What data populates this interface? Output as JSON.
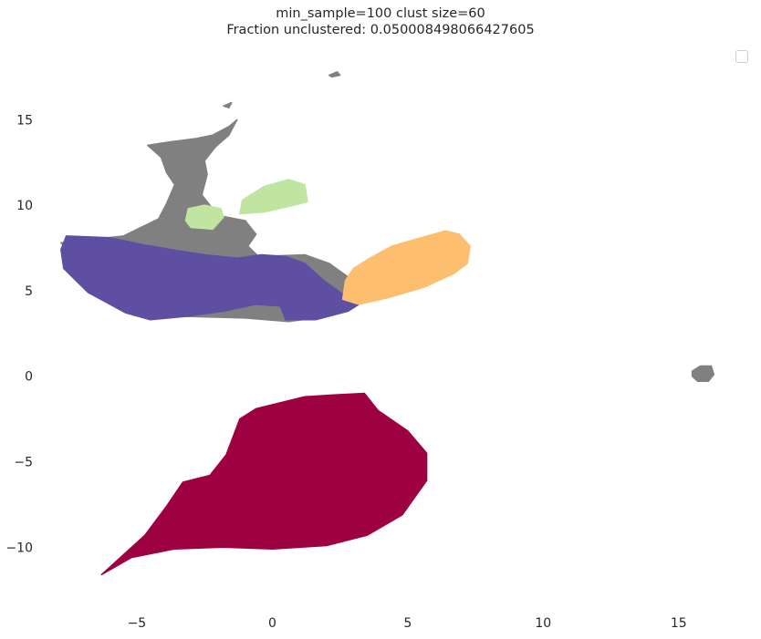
{
  "chart_data": {
    "type": "scatter",
    "title": "min_sample=100 clust size=60",
    "subtitle": "Fraction unclustered: 0.050008498066427605",
    "xlabel": "",
    "ylabel": "",
    "xlim": [
      -8.5,
      17.5
    ],
    "ylim": [
      -13.5,
      18.8
    ],
    "xticks": [
      -5,
      0,
      5,
      10,
      15
    ],
    "yticks": [
      -10,
      -5,
      0,
      5,
      10,
      15
    ],
    "xtick_labels": [
      "−5",
      "0",
      "5",
      "10",
      "15"
    ],
    "ytick_labels": [
      "−10",
      "−5",
      "0",
      "5",
      "10",
      "15"
    ],
    "grid": false,
    "legend": {
      "placement": "top-right",
      "entries": []
    },
    "colors": {
      "unclustered": "#808080",
      "cluster_red": "#9e0142",
      "cluster_purple": "#5e4fa2",
      "cluster_orange": "#fdbf6f",
      "cluster_green": "#bfe5a0"
    },
    "series": [
      {
        "color_key": "unclustered",
        "polygons": [
          [
            [
              -4.6,
              13.5
            ],
            [
              -3.8,
              13.7
            ],
            [
              -2.8,
              13.9
            ],
            [
              -2.2,
              14.1
            ],
            [
              -1.6,
              14.6
            ],
            [
              -1.3,
              15.0
            ],
            [
              -1.6,
              14.1
            ],
            [
              -2.1,
              13.4
            ],
            [
              -2.5,
              12.6
            ],
            [
              -2.4,
              11.8
            ],
            [
              -2.6,
              10.6
            ],
            [
              -2.0,
              9.4
            ],
            [
              -1.0,
              9.1
            ],
            [
              -0.6,
              8.3
            ],
            [
              -0.9,
              7.6
            ],
            [
              -0.5,
              7.0
            ],
            [
              1.2,
              7.1
            ],
            [
              2.1,
              6.6
            ],
            [
              2.8,
              5.8
            ],
            [
              3.0,
              5.0
            ],
            [
              2.6,
              4.0
            ],
            [
              1.6,
              3.4
            ],
            [
              0.6,
              3.2
            ],
            [
              -1.0,
              3.4
            ],
            [
              -3.2,
              3.5
            ],
            [
              -5.4,
              3.9
            ],
            [
              -7.8,
              7.8
            ],
            [
              -5.5,
              8.2
            ],
            [
              -4.2,
              9.2
            ],
            [
              -3.9,
              10.1
            ],
            [
              -3.6,
              11.2
            ],
            [
              -3.9,
              11.9
            ],
            [
              -4.1,
              12.8
            ]
          ],
          [
            [
              15.5,
              0.3
            ],
            [
              15.8,
              0.6
            ],
            [
              16.2,
              0.6
            ],
            [
              16.3,
              0.1
            ],
            [
              16.1,
              -0.3
            ],
            [
              15.7,
              -0.3
            ],
            [
              15.5,
              0.0
            ]
          ],
          [
            [
              2.1,
              17.6
            ],
            [
              2.4,
              17.8
            ],
            [
              2.5,
              17.6
            ],
            [
              2.2,
              17.5
            ]
          ],
          [
            [
              -1.8,
              15.8
            ],
            [
              -1.5,
              16.0
            ],
            [
              -1.6,
              15.7
            ]
          ]
        ]
      },
      {
        "color_key": "cluster_purple",
        "polygons": [
          [
            [
              -7.6,
              8.2
            ],
            [
              -6.0,
              8.1
            ],
            [
              -4.8,
              7.7
            ],
            [
              -3.7,
              7.4
            ],
            [
              -2.5,
              7.1
            ],
            [
              -1.3,
              6.9
            ],
            [
              -0.4,
              7.1
            ],
            [
              0.5,
              7.0
            ],
            [
              1.2,
              6.6
            ],
            [
              1.9,
              5.6
            ],
            [
              2.6,
              4.8
            ],
            [
              3.6,
              4.6
            ],
            [
              2.8,
              3.8
            ],
            [
              1.6,
              3.3
            ],
            [
              0.5,
              3.3
            ],
            [
              0.3,
              4.1
            ],
            [
              -0.6,
              4.2
            ],
            [
              -1.8,
              3.8
            ],
            [
              -3.2,
              3.5
            ],
            [
              -4.5,
              3.3
            ],
            [
              -5.4,
              3.7
            ],
            [
              -6.8,
              4.9
            ],
            [
              -7.7,
              6.3
            ],
            [
              -7.8,
              7.4
            ]
          ]
        ]
      },
      {
        "color_key": "cluster_orange",
        "polygons": [
          [
            [
              2.6,
              4.5
            ],
            [
              2.7,
              5.6
            ],
            [
              3.0,
              6.3
            ],
            [
              3.6,
              6.9
            ],
            [
              4.4,
              7.6
            ],
            [
              5.5,
              8.1
            ],
            [
              6.4,
              8.5
            ],
            [
              6.9,
              8.3
            ],
            [
              7.3,
              7.6
            ],
            [
              7.2,
              6.6
            ],
            [
              6.7,
              6.0
            ],
            [
              5.6,
              5.2
            ],
            [
              4.3,
              4.6
            ],
            [
              3.2,
              4.2
            ]
          ]
        ]
      },
      {
        "color_key": "cluster_green",
        "polygons": [
          [
            [
              -1.2,
              9.5
            ],
            [
              -1.1,
              10.3
            ],
            [
              -0.3,
              11.1
            ],
            [
              0.6,
              11.5
            ],
            [
              1.2,
              11.2
            ],
            [
              1.3,
              10.2
            ],
            [
              0.8,
              10.0
            ],
            [
              -0.3,
              9.6
            ]
          ],
          [
            [
              -3.2,
              9.1
            ],
            [
              -3.1,
              9.8
            ],
            [
              -2.5,
              10.0
            ],
            [
              -1.9,
              9.8
            ],
            [
              -1.8,
              9.3
            ],
            [
              -2.2,
              8.6
            ],
            [
              -3.0,
              8.7
            ]
          ]
        ]
      },
      {
        "color_key": "cluster_red",
        "polygons": [
          [
            [
              -6.3,
              -11.6
            ],
            [
              -5.2,
              -10.6
            ],
            [
              -3.6,
              -10.1
            ],
            [
              -1.8,
              -10.0
            ],
            [
              0.0,
              -10.1
            ],
            [
              2.0,
              -9.9
            ],
            [
              3.5,
              -9.3
            ],
            [
              4.8,
              -8.1
            ],
            [
              5.7,
              -6.1
            ],
            [
              5.7,
              -4.5
            ],
            [
              5.0,
              -3.2
            ],
            [
              3.9,
              -2.0
            ],
            [
              3.4,
              -1.0
            ],
            [
              2.2,
              -1.1
            ],
            [
              1.2,
              -1.2
            ],
            [
              -0.6,
              -1.9
            ],
            [
              -1.2,
              -2.5
            ],
            [
              -1.7,
              -4.6
            ],
            [
              -2.3,
              -5.8
            ],
            [
              -3.3,
              -6.2
            ],
            [
              -3.9,
              -7.6
            ],
            [
              -4.7,
              -9.3
            ]
          ]
        ]
      }
    ]
  }
}
